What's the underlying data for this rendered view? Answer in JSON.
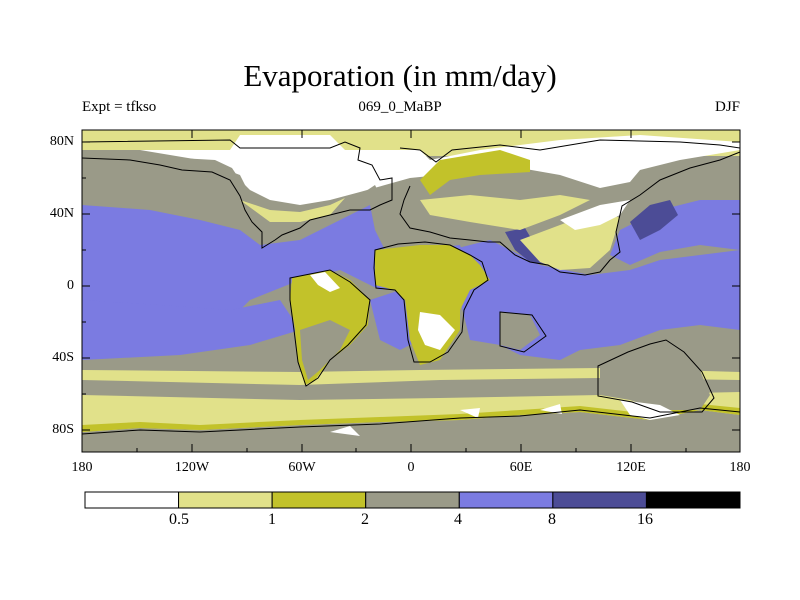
{
  "title": "Evaporation (in mm/day)",
  "left_label": "Expt = tfkso",
  "center_label": "069_0_MaBP",
  "right_label": "DJF",
  "y_ticks": [
    "80N",
    "40N",
    "0",
    "40S",
    "80S"
  ],
  "x_ticks": [
    "180",
    "120W",
    "60W",
    "0",
    "60E",
    "120E",
    "180"
  ],
  "colorbar": {
    "levels": [
      "0.5",
      "1",
      "2",
      "4",
      "8",
      "16"
    ],
    "colors": [
      "#ffffff",
      "#e1e18a",
      "#c2c22a",
      "#9a9a88",
      "#7b7be1",
      "#4c4c96",
      "#000000"
    ]
  },
  "map_colors": {
    "ice": "#ffffff",
    "pale": "#e1e18a",
    "olive": "#c2c22a",
    "grey": "#9a9a88",
    "blue": "#7b7be1",
    "dark": "#4c4c96"
  }
}
